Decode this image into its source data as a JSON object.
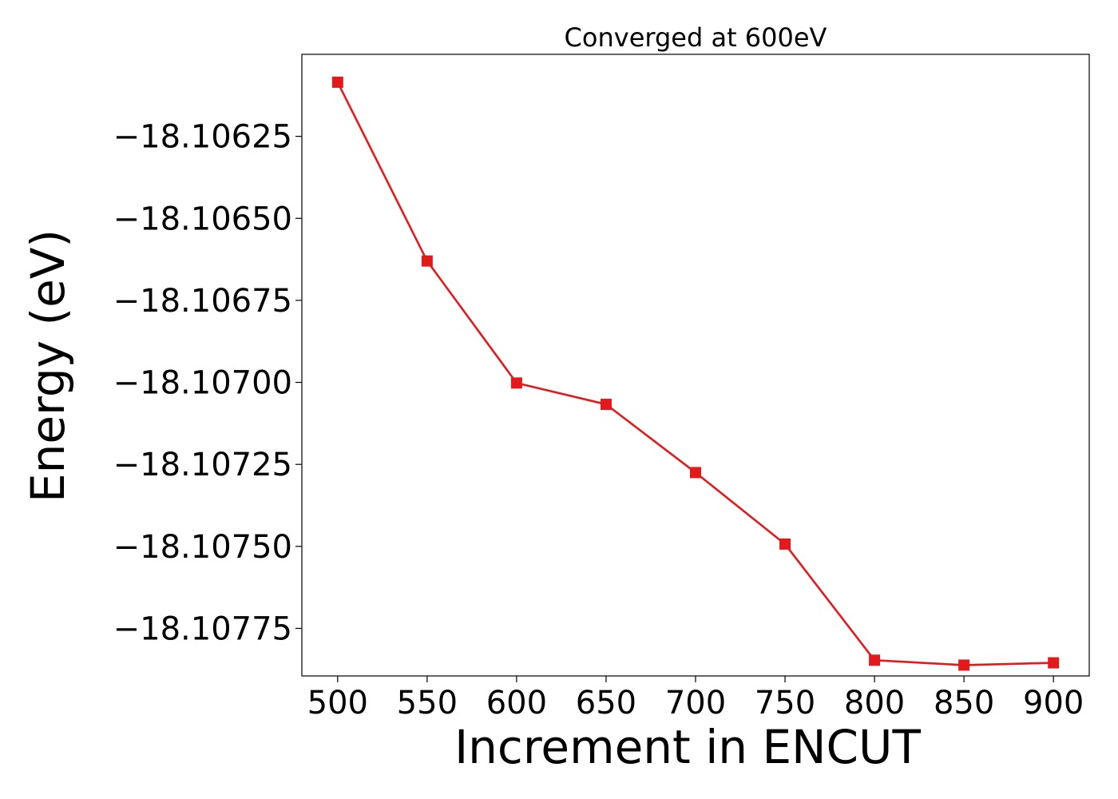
{
  "chart_data": {
    "type": "line",
    "title": "Converged at 600eV",
    "xlabel": "Increment in ENCUT",
    "ylabel": "Energy (eV)",
    "x": [
      500,
      550,
      600,
      650,
      700,
      750,
      800,
      850,
      900
    ],
    "series": [
      {
        "values": [
          -18.106085,
          -18.10663,
          -18.107002,
          -18.107067,
          -18.107275,
          -18.107493,
          -18.107847,
          -18.107862,
          -18.107855
        ],
        "color": "#e31a1c",
        "marker": "square"
      }
    ],
    "xticks": [
      500,
      550,
      600,
      650,
      700,
      750,
      800,
      850,
      900
    ],
    "xtick_labels": [
      "500",
      "550",
      "600",
      "650",
      "700",
      "750",
      "800",
      "850",
      "900"
    ],
    "yticks": [
      -18.10625,
      -18.1065,
      -18.10675,
      -18.107,
      -18.10725,
      -18.1075,
      -18.10775
    ],
    "ytick_labels": [
      "−18.10625",
      "−18.10650",
      "−18.10675",
      "−18.10700",
      "−18.10725",
      "−18.10750",
      "−18.10775"
    ],
    "xlim": [
      480,
      920
    ],
    "ylim": [
      -18.107895,
      -18.106
    ],
    "grid": false,
    "legend": "none"
  }
}
